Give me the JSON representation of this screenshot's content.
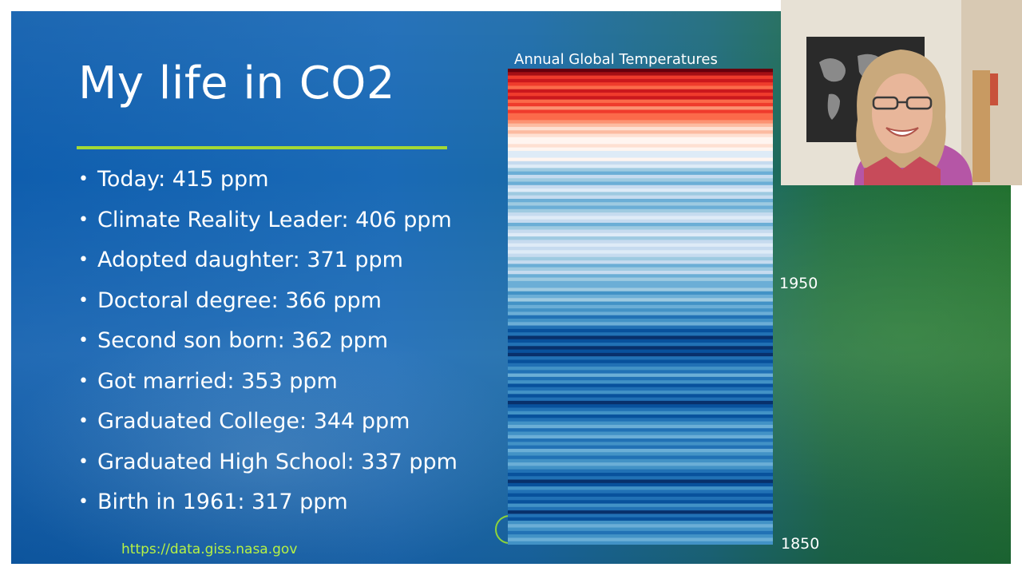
{
  "slide": {
    "title": "My life in CO2",
    "bullets": [
      "Today:  415 ppm",
      "Climate Reality Leader: 406 ppm",
      "Adopted daughter: 371 ppm",
      "Doctoral degree: 366 ppm",
      "Second son born: 362 ppm",
      "Got married: 353 ppm",
      "Graduated College:  344 ppm",
      "Graduated High School: 337 ppm",
      "Birth in 1961:  317 ppm"
    ],
    "source_link": "https://data.giss.nasa.gov",
    "accent_color": "#a3d935"
  },
  "stripes": {
    "title": "Annual Global Temperatures",
    "label_top": "1950",
    "label_bottom": "1850",
    "colors": [
      "#67000d",
      "#a50f15",
      "#cb181d",
      "#ef3b2c",
      "#fb6a4a",
      "#fc9272",
      "#fcbba1",
      "#fee0d2",
      "#fff5f0",
      "#deebf7",
      "#c6dbef",
      "#9ecae1",
      "#6baed6",
      "#4292c6",
      "#2171b5",
      "#08519c",
      "#08306b"
    ],
    "warming_stripe_indices": [
      0,
      1,
      3,
      2,
      3,
      4,
      2,
      3,
      2,
      4,
      3,
      5,
      3,
      4,
      4,
      5,
      6,
      7,
      6,
      7,
      8,
      8,
      7,
      8,
      9,
      9,
      8,
      10,
      9,
      11,
      12,
      10,
      11,
      12,
      10,
      9,
      11,
      10,
      12,
      11,
      12,
      11,
      10,
      9,
      10,
      12,
      11,
      10,
      9,
      11,
      10,
      9,
      10,
      9,
      10,
      11,
      10,
      12,
      11,
      10,
      12,
      11,
      12,
      12,
      11,
      13,
      12,
      11,
      13,
      12,
      13,
      12,
      14,
      13,
      12,
      14,
      15,
      14,
      16,
      15,
      14,
      16,
      15,
      16,
      14,
      15,
      14,
      13,
      14,
      12,
      14,
      13,
      15,
      14,
      13,
      15,
      14,
      16,
      15,
      14,
      13,
      15,
      14,
      13,
      12,
      14,
      13,
      12,
      14,
      13,
      14,
      12,
      13,
      14,
      13,
      12,
      13,
      14,
      15,
      14,
      16,
      15,
      13,
      14,
      15,
      14,
      15,
      13,
      14,
      16,
      14,
      15,
      13,
      12,
      13,
      14,
      13,
      12,
      13
    ]
  },
  "video": {
    "participant": "presenter webcam"
  },
  "icons": {
    "bullet": "bullet-dot-icon",
    "ring": "circle-outline-icon"
  }
}
